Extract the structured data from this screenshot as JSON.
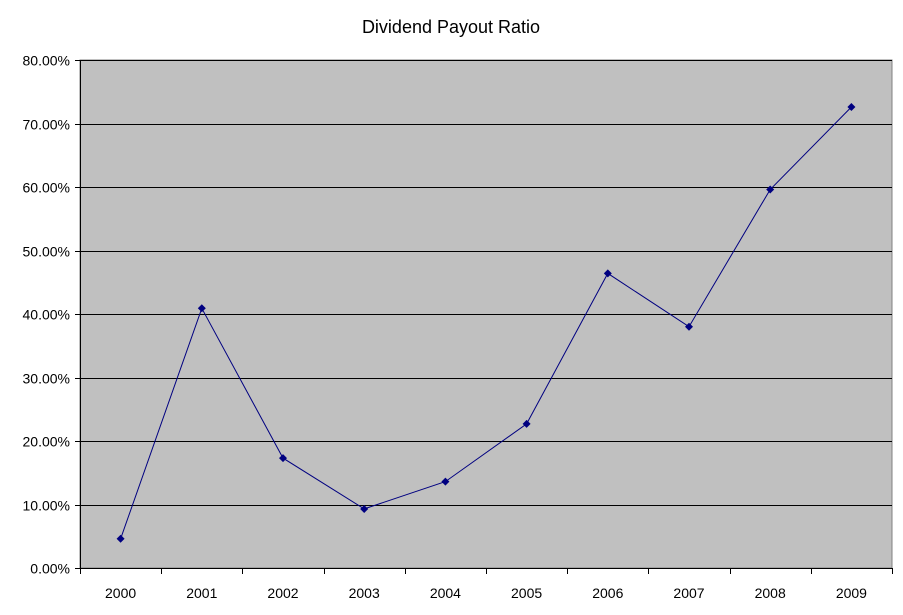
{
  "chart_data": {
    "type": "line",
    "title": "Dividend Payout Ratio",
    "xlabel": "",
    "ylabel": "",
    "categories": [
      "2000",
      "2001",
      "2002",
      "2003",
      "2004",
      "2005",
      "2006",
      "2007",
      "2008",
      "2009"
    ],
    "series": [
      {
        "values": [
          4.6,
          40.9,
          17.3,
          9.3,
          13.6,
          22.7,
          46.4,
          38.0,
          59.6,
          72.6
        ]
      }
    ],
    "ylim": [
      0,
      80
    ],
    "y_ticks": [
      0,
      10,
      20,
      30,
      40,
      50,
      60,
      70,
      80
    ],
    "y_tick_labels": [
      "0.00%",
      "10.00%",
      "20.00%",
      "30.00%",
      "40.00%",
      "50.00%",
      "60.00%",
      "70.00%",
      "80.00%"
    ],
    "grid": true,
    "legend": "none",
    "colors": {
      "plot_background": "#c0c0c0",
      "line": "#000080",
      "gridline": "#000000"
    }
  }
}
